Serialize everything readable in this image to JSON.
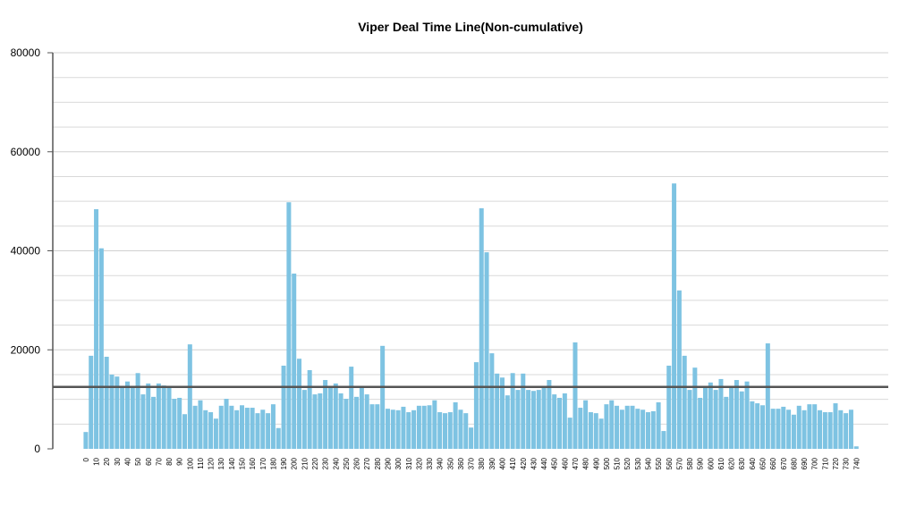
{
  "chart_data": {
    "type": "bar",
    "title": "Viper Deal Time Line(Non-cumulative)",
    "color": "#7ec3e2",
    "categories": [
      "0",
      null,
      "10",
      null,
      "20",
      null,
      "30",
      null,
      "40",
      null,
      "50",
      null,
      "60",
      null,
      "70",
      null,
      "80",
      null,
      "90",
      null,
      "100",
      null,
      "110",
      null,
      "120",
      null,
      "130",
      null,
      "140",
      null,
      "150",
      null,
      "160",
      null,
      "170",
      null,
      "180",
      null,
      "190",
      null,
      "200",
      null,
      "210",
      null,
      "220",
      null,
      "230",
      null,
      "240",
      null,
      "250",
      null,
      "260",
      null,
      "270",
      null,
      "280",
      null,
      "290",
      null,
      "300",
      null,
      "310",
      null,
      "320",
      null,
      "330",
      null,
      "340",
      null,
      "350",
      null,
      "360",
      null,
      "370",
      null,
      "380",
      null,
      "390",
      null,
      "400",
      null,
      "410",
      null,
      "420",
      null,
      "430",
      null,
      "440",
      null,
      "450",
      null,
      "460",
      null,
      "470",
      null,
      "480",
      null,
      "490",
      null,
      "500",
      null,
      "510",
      null,
      "520",
      null,
      "530",
      null,
      "540",
      null,
      "550",
      null,
      "560",
      null,
      "570",
      null,
      "580",
      null,
      "590",
      null,
      "600",
      null,
      "610",
      null,
      "620",
      null,
      "630",
      null,
      "640",
      null,
      "650",
      null,
      "660",
      null,
      "670",
      null,
      "680",
      null,
      "690",
      null,
      "700",
      null,
      "710",
      null,
      "720",
      null,
      "730",
      null,
      "740"
    ],
    "values": [
      3400,
      18800,
      48400,
      40500,
      18600,
      15000,
      14600,
      12400,
      13600,
      12400,
      15300,
      11000,
      13200,
      10500,
      13200,
      12800,
      12400,
      10100,
      10300,
      7000,
      21100,
      8700,
      9800,
      7800,
      7400,
      6100,
      8700,
      10100,
      8700,
      7800,
      8800,
      8300,
      8300,
      7200,
      7900,
      7200,
      9000,
      4200,
      16800,
      49800,
      35400,
      18200,
      11900,
      15900,
      11000,
      11200,
      13900,
      12300,
      13200,
      11200,
      10100,
      16600,
      10500,
      12300,
      11000,
      9000,
      9000,
      20800,
      8100,
      7900,
      7800,
      8500,
      7400,
      7800,
      8700,
      8700,
      8800,
      9800,
      7400,
      7200,
      7400,
      9400,
      7900,
      7200,
      4300,
      17500,
      48600,
      39700,
      19300,
      15200,
      14400,
      10800,
      15300,
      11900,
      15200,
      11900,
      11700,
      11900,
      12400,
      13900,
      11000,
      10300,
      11200,
      6300,
      21500,
      8300,
      9800,
      7400,
      7200,
      6100,
      9000,
      9800,
      8700,
      7900,
      8700,
      8700,
      8100,
      7900,
      7400,
      7600,
      9400,
      3600,
      16800,
      53600,
      32000,
      18800,
      11900,
      16400,
      10300,
      12400,
      13400,
      11900,
      14100,
      10500,
      12600,
      13900,
      11600,
      13600,
      9600,
      9200,
      8800,
      21300,
      8100,
      8100,
      8500,
      7900,
      6900,
      8700,
      7800,
      9000,
      9000,
      7800,
      7400,
      7400,
      9200,
      7800,
      7200,
      7900,
      500
    ],
    "ylim": [
      0,
      80000
    ],
    "yticks": [
      0,
      20000,
      40000,
      60000,
      80000
    ],
    "minor_gridlines": [
      5000,
      10000,
      15000,
      25000,
      30000,
      35000,
      45000,
      50000,
      55000,
      65000,
      70000,
      75000
    ],
    "grid": true,
    "reference_line": 12500
  }
}
